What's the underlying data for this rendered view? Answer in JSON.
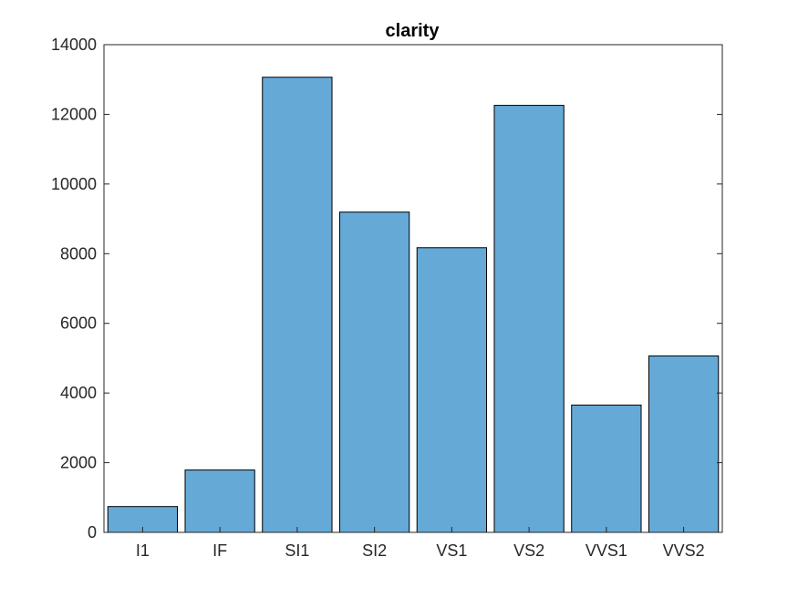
{
  "chart_data": {
    "type": "bar",
    "title": "clarity",
    "xlabel": "",
    "ylabel": "",
    "categories": [
      "I1",
      "IF",
      "SI1",
      "SI2",
      "VS1",
      "VS2",
      "VVS1",
      "VVS2"
    ],
    "values": [
      741,
      1790,
      13065,
      9194,
      8171,
      12258,
      3655,
      5066
    ],
    "ylim": [
      0,
      14000
    ],
    "yticks": [
      0,
      2000,
      4000,
      6000,
      8000,
      10000,
      12000,
      14000
    ],
    "grid": false,
    "bar_color": "#65A9D7",
    "edge_color": "#000000"
  }
}
